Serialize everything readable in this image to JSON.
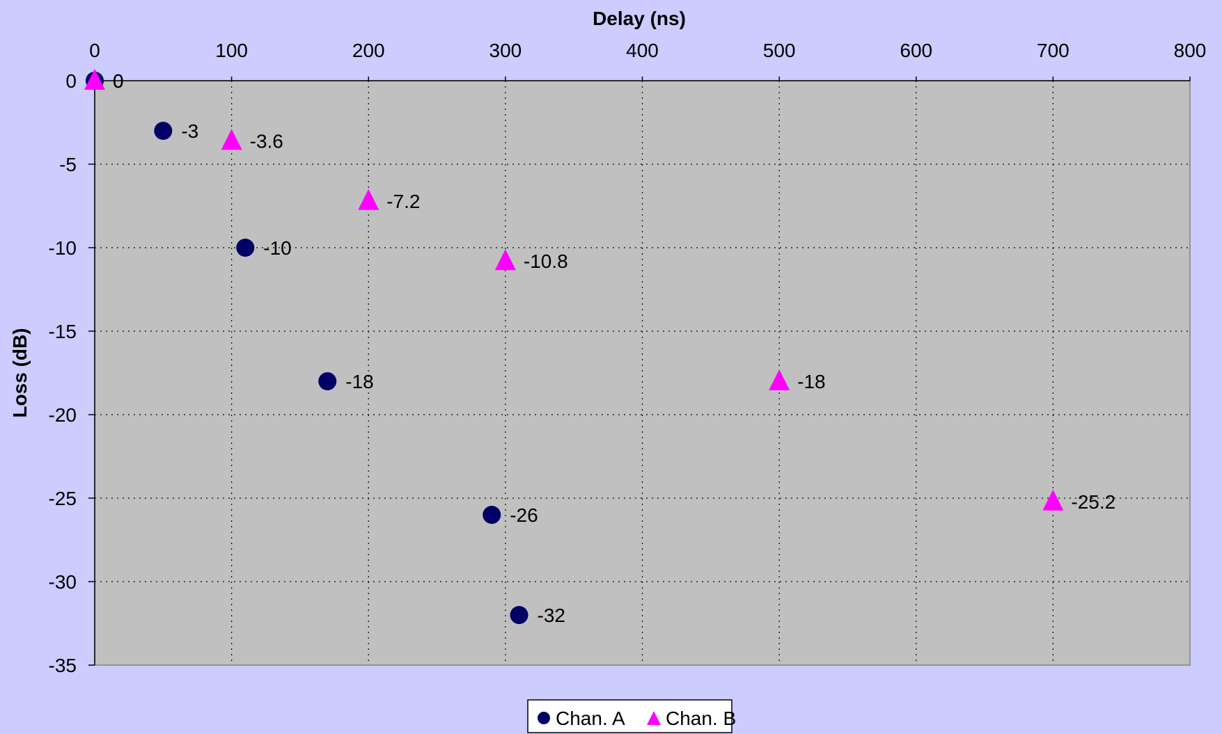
{
  "chart_data": {
    "type": "scatter",
    "xlabel": "Delay (ns)",
    "ylabel": "Loss (dB)",
    "xlim": [
      0,
      800
    ],
    "ylim": [
      -35,
      0
    ],
    "x_ticks": [
      "0",
      "100",
      "200",
      "300",
      "400",
      "500",
      "600",
      "700",
      "800"
    ],
    "y_ticks": [
      "0",
      "-5",
      "-10",
      "-15",
      "-20",
      "-25",
      "-30",
      "-35"
    ],
    "x_axis_position": "top",
    "grid": true,
    "legend_position": "bottom-center",
    "series": [
      {
        "name": "Chan. A",
        "marker": "circle",
        "color": "#000066",
        "points": [
          {
            "x": 0,
            "y": 0
          },
          {
            "x": 50,
            "y": -3
          },
          {
            "x": 110,
            "y": -10
          },
          {
            "x": 170,
            "y": -18
          },
          {
            "x": 290,
            "y": -26
          },
          {
            "x": 310,
            "y": -32
          }
        ],
        "labels": [
          "0",
          "-3",
          "-10",
          "-18",
          "-26",
          "-32"
        ]
      },
      {
        "name": "Chan. B",
        "marker": "triangle",
        "color": "#FF00FF",
        "points": [
          {
            "x": 0,
            "y": 0
          },
          {
            "x": 100,
            "y": -3.6
          },
          {
            "x": 200,
            "y": -7.2
          },
          {
            "x": 300,
            "y": -10.8
          },
          {
            "x": 500,
            "y": -18
          },
          {
            "x": 700,
            "y": -25.2
          }
        ],
        "labels": [
          "0",
          "-3.6",
          "-7.2",
          "-10.8",
          "-18",
          "-25.2"
        ]
      }
    ]
  },
  "colors": {
    "background": "#CCCCFF",
    "plot_area": "#C0C0C0"
  }
}
